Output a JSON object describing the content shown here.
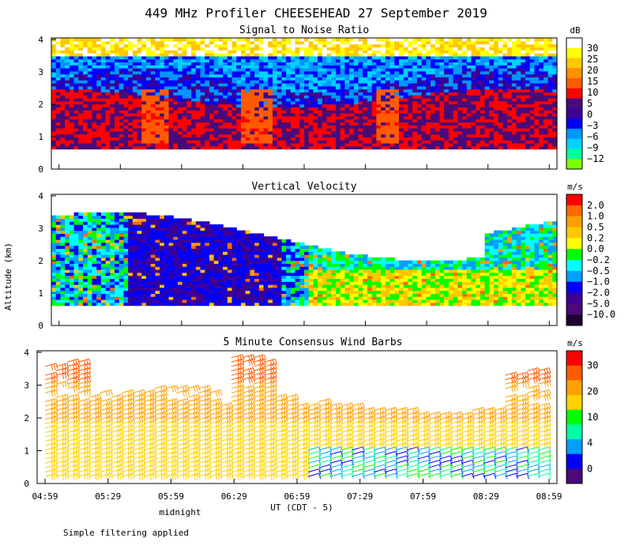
{
  "title": "449 MHz Profiler CHEESEHEAD 27 September 2019",
  "ylabel": "Altitude (km)",
  "xlabel": "UT (CDT - 5)",
  "midnight_label": "midnight",
  "footnote": "Simple filtering applied",
  "xticks": [
    "04:59",
    "05:29",
    "05:59",
    "06:29",
    "06:59",
    "07:29",
    "07:59",
    "08:29",
    "08:59"
  ],
  "yticks": [
    "0",
    "1",
    "2",
    "3",
    "4"
  ],
  "colors": {
    "white": "#ffffff",
    "yellow": "#ffff00",
    "orange": "#ffa500",
    "red": "#ff0000",
    "green": "#00ff00",
    "cyan": "#00ffff",
    "blue": "#0000ff",
    "indigo": "#4b0082"
  },
  "chart_data": [
    {
      "type": "heatmap",
      "title": "Signal to Noise Ratio",
      "ylabel": "Altitude (km)",
      "ylim": [
        0,
        4
      ],
      "colorbar": {
        "unit": "dB",
        "labels": [
          "30",
          "25",
          "20",
          "15",
          "10",
          "5",
          "0",
          "−3",
          "−6",
          "−9",
          "−12"
        ],
        "colors": [
          "#ffffff",
          "#ffff00",
          "#ffc800",
          "#ff9000",
          "#ff5a00",
          "#ff0000",
          "#4a0a78",
          "#3c0096",
          "#0000ff",
          "#0096ff",
          "#00d2ff",
          "#00ff96",
          "#7cff00"
        ]
      }
    },
    {
      "type": "heatmap",
      "title": "Vertical Velocity",
      "ylabel": "Altitude (km)",
      "ylim": [
        0,
        4
      ],
      "colorbar": {
        "unit": "m/s",
        "labels": [
          "2.0",
          "1.0",
          "0.5",
          "0.2",
          "0.0",
          "−0.2",
          "−0.5",
          "−1.0",
          "−2.0",
          "−5.0",
          "−10.0"
        ],
        "colors": [
          "#ff0000",
          "#ff6a00",
          "#ff9e00",
          "#ffc800",
          "#ffff00",
          "#00ff00",
          "#00ffff",
          "#00a0ff",
          "#0000ff",
          "#3c0096",
          "#4a0a78",
          "#1e0032"
        ]
      }
    },
    {
      "type": "scatter",
      "title": "5 Minute Consensus Wind Barbs",
      "ylabel": "Altitude (km)",
      "ylim": [
        0,
        4
      ],
      "colorbar": {
        "unit": "m/s",
        "labels": [
          "30",
          "20",
          "10",
          "4",
          "0"
        ],
        "colors": [
          "#ff0000",
          "#ff5a00",
          "#ffa000",
          "#ffd200",
          "#00ff00",
          "#00ffa0",
          "#00a0ff",
          "#0000ff",
          "#4a0a78"
        ]
      }
    }
  ]
}
